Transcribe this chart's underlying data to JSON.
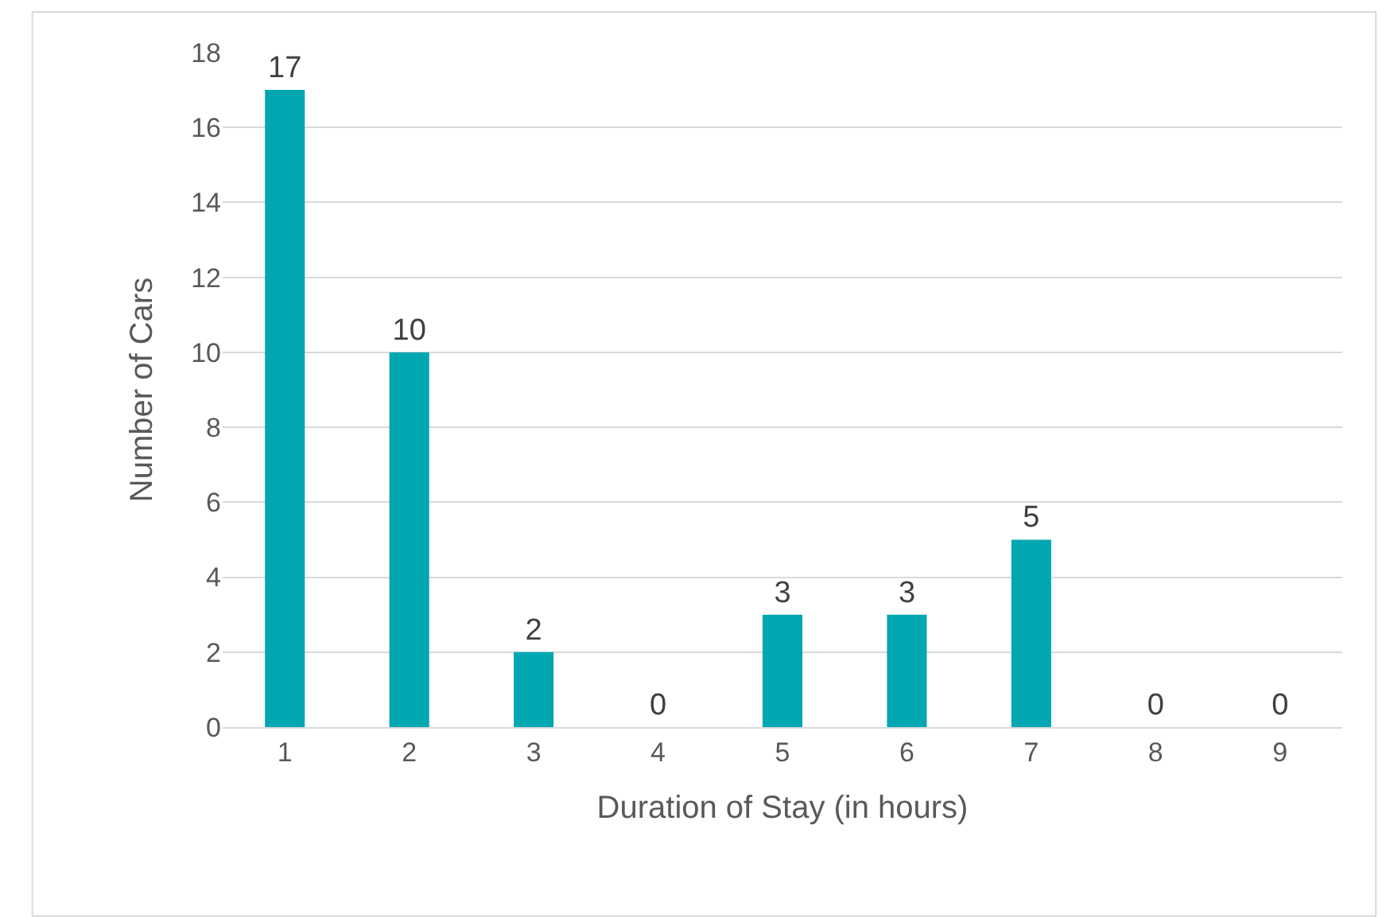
{
  "chart_data": {
    "type": "bar",
    "xlabel": "Duration of Stay (in hours)",
    "ylabel": "Number of Cars",
    "categories": [
      "1",
      "2",
      "3",
      "4",
      "5",
      "6",
      "7",
      "8",
      "9"
    ],
    "values": [
      17,
      10,
      2,
      0,
      3,
      3,
      5,
      0,
      0
    ],
    "color": "#00a6b0",
    "ylim": [
      0,
      18
    ],
    "yticks": [
      0,
      2,
      4,
      6,
      8,
      10,
      12,
      14,
      16,
      18
    ],
    "grid": "y",
    "data_labels": true
  }
}
